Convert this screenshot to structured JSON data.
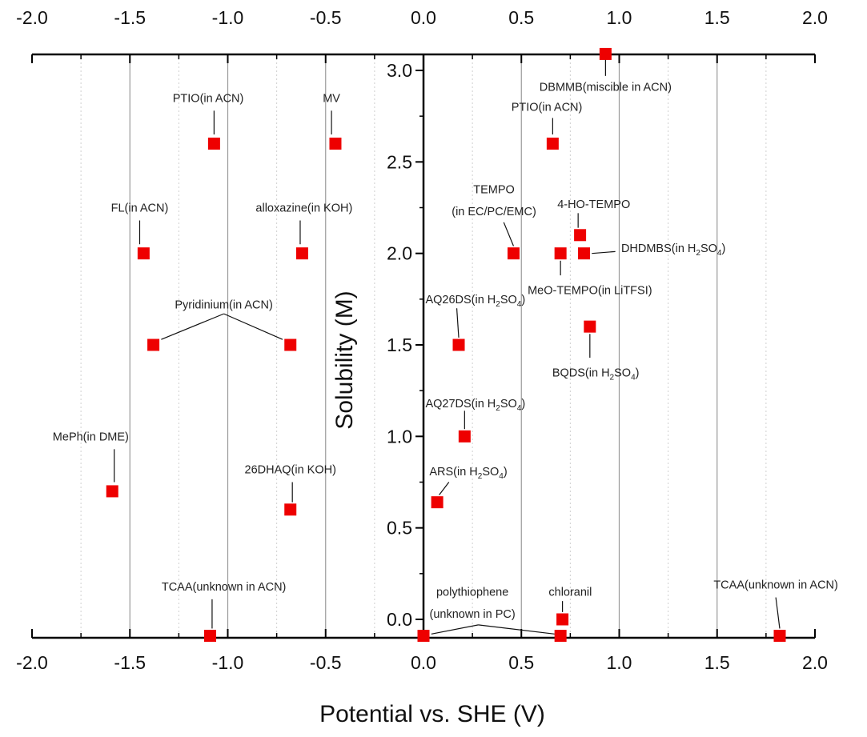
{
  "chart_data": {
    "type": "scatter",
    "xlabel": "Potential vs. SHE (V)",
    "ylabel": "Solubility (M)",
    "xlim": [
      -2.0,
      2.0
    ],
    "ylim": [
      -0.1,
      3.1
    ],
    "x_major_ticks": [
      -2.0,
      -1.5,
      -1.0,
      -0.5,
      0.0,
      0.5,
      1.0,
      1.5,
      2.0
    ],
    "x_tick_labels": [
      "-2.0",
      "-1.5",
      "-1.0",
      "-0.5",
      "0.0",
      "0.5",
      "1.0",
      "1.5",
      "2.0"
    ],
    "x_minor_gridlines": [
      -1.75,
      -1.25,
      -0.75,
      -0.25,
      0.25,
      0.75,
      1.25,
      1.75
    ],
    "y_ticks": [
      0.0,
      0.5,
      1.0,
      1.5,
      2.0,
      2.5,
      3.0
    ],
    "y_tick_labels": [
      "0.0",
      "0.5",
      "1.0",
      "1.5",
      "2.0",
      "2.5",
      "3.0"
    ],
    "y_axis_at_x": 0.0,
    "grid": "vertical only",
    "marker_color": "#ee0000",
    "points": [
      {
        "x": -1.07,
        "y": 2.6
      },
      {
        "x": -0.45,
        "y": 2.6
      },
      {
        "x": -1.43,
        "y": 2.0
      },
      {
        "x": -0.62,
        "y": 2.0
      },
      {
        "x": -1.38,
        "y": 1.5
      },
      {
        "x": -0.68,
        "y": 1.5
      },
      {
        "x": -1.59,
        "y": 0.7
      },
      {
        "x": -0.68,
        "y": 0.6
      },
      {
        "x": -1.09,
        "y": -0.09
      },
      {
        "x": 0.0,
        "y": -0.09
      },
      {
        "x": 0.7,
        "y": -0.09
      },
      {
        "x": 0.71,
        "y": 0.0
      },
      {
        "x": 1.82,
        "y": -0.09
      },
      {
        "x": 0.93,
        "y": 3.09
      },
      {
        "x": 0.66,
        "y": 2.6
      },
      {
        "x": 0.46,
        "y": 2.0
      },
      {
        "x": 0.7,
        "y": 2.0
      },
      {
        "x": 0.82,
        "y": 2.0
      },
      {
        "x": 0.8,
        "y": 2.1
      },
      {
        "x": 0.18,
        "y": 1.5
      },
      {
        "x": 0.85,
        "y": 1.6
      },
      {
        "x": 0.21,
        "y": 1.0
      },
      {
        "x": 0.07,
        "y": 0.64
      }
    ],
    "annotations": [
      {
        "parts": [
          {
            "t": "PTIO(in ACN)"
          }
        ],
        "x": -1.1,
        "y": 2.85,
        "anchor": "middle"
      },
      {
        "parts": [
          {
            "t": "MV"
          }
        ],
        "x": -0.47,
        "y": 2.85,
        "anchor": "middle"
      },
      {
        "parts": [
          {
            "t": "FL(in ACN)"
          }
        ],
        "x": -1.45,
        "y": 2.25,
        "anchor": "middle"
      },
      {
        "parts": [
          {
            "t": "alloxazine(in KOH)"
          }
        ],
        "x": -0.61,
        "y": 2.25,
        "anchor": "middle"
      },
      {
        "parts": [
          {
            "t": "Pyridinium(in ACN)"
          }
        ],
        "x": -1.02,
        "y": 1.72,
        "anchor": "middle"
      },
      {
        "parts": [
          {
            "t": "MePh(in DME)"
          }
        ],
        "x": -1.7,
        "y": 1.0,
        "anchor": "middle"
      },
      {
        "parts": [
          {
            "t": "26DHAQ(in KOH)"
          }
        ],
        "x": -0.68,
        "y": 0.82,
        "anchor": "middle"
      },
      {
        "parts": [
          {
            "t": "TCAA(unknown in ACN)"
          }
        ],
        "x": -1.02,
        "y": 0.18,
        "anchor": "middle"
      },
      {
        "parts": [
          {
            "t": "DBMMB(miscible in ACN)"
          }
        ],
        "x": 0.93,
        "y": 2.91,
        "anchor": "middle"
      },
      {
        "parts": [
          {
            "t": "PTIO(in ACN)"
          }
        ],
        "x": 0.63,
        "y": 2.8,
        "anchor": "middle"
      },
      {
        "parts": [
          {
            "t": "TEMPO"
          }
        ],
        "x": 0.36,
        "y": 2.35,
        "anchor": "middle"
      },
      {
        "parts": [
          {
            "t": "(in EC/PC/EMC)"
          }
        ],
        "x": 0.36,
        "y": 2.23,
        "anchor": "middle"
      },
      {
        "parts": [
          {
            "t": "4-HO-TEMPO"
          }
        ],
        "x": 0.87,
        "y": 2.27,
        "anchor": "middle"
      },
      {
        "parts": [
          {
            "t": "DHDMBS(in H"
          },
          {
            "t": "2",
            "sub": true
          },
          {
            "t": "SO"
          },
          {
            "t": "4",
            "sub": true
          },
          {
            "t": ")"
          }
        ],
        "x": 1.01,
        "y": 2.03,
        "anchor": "start"
      },
      {
        "parts": [
          {
            "t": "MeO-TEMPO(in LiTFSI)"
          }
        ],
        "x": 0.85,
        "y": 1.8,
        "anchor": "middle"
      },
      {
        "parts": [
          {
            "t": "AQ26DS(in H"
          },
          {
            "t": "2",
            "sub": true
          },
          {
            "t": "SO"
          },
          {
            "t": "4",
            "sub": true
          },
          {
            "t": ")"
          }
        ],
        "x": 0.01,
        "y": 1.75,
        "anchor": "start"
      },
      {
        "parts": [
          {
            "t": "BQDS(in H"
          },
          {
            "t": "2",
            "sub": true
          },
          {
            "t": "SO"
          },
          {
            "t": "4",
            "sub": true
          },
          {
            "t": ")"
          }
        ],
        "x": 0.88,
        "y": 1.35,
        "anchor": "middle"
      },
      {
        "parts": [
          {
            "t": "AQ27DS(in H"
          },
          {
            "t": "2",
            "sub": true
          },
          {
            "t": "SO"
          },
          {
            "t": "4",
            "sub": true
          },
          {
            "t": ")"
          }
        ],
        "x": 0.01,
        "y": 1.18,
        "anchor": "start"
      },
      {
        "parts": [
          {
            "t": "ARS(in H"
          },
          {
            "t": "2",
            "sub": true
          },
          {
            "t": "SO"
          },
          {
            "t": "4",
            "sub": true
          },
          {
            "t": ")"
          }
        ],
        "x": 0.03,
        "y": 0.81,
        "anchor": "start"
      },
      {
        "parts": [
          {
            "t": "polythiophene"
          }
        ],
        "x": 0.25,
        "y": 0.15,
        "anchor": "middle"
      },
      {
        "parts": [
          {
            "t": "(unknown in PC)"
          }
        ],
        "x": 0.25,
        "y": 0.03,
        "anchor": "middle"
      },
      {
        "parts": [
          {
            "t": "chloranil"
          }
        ],
        "x": 0.75,
        "y": 0.15,
        "anchor": "middle"
      },
      {
        "parts": [
          {
            "t": "TCAA(unknown in ACN)"
          }
        ],
        "x": 1.8,
        "y": 0.19,
        "anchor": "middle"
      }
    ],
    "leaders": [
      [
        [
          -1.07,
          2.78
        ],
        [
          -1.07,
          2.65
        ]
      ],
      [
        [
          -0.47,
          2.78
        ],
        [
          -0.47,
          2.65
        ]
      ],
      [
        [
          -1.45,
          2.18
        ],
        [
          -1.45,
          2.05
        ]
      ],
      [
        [
          -0.63,
          2.18
        ],
        [
          -0.63,
          2.05
        ]
      ],
      [
        [
          -1.02,
          1.67
        ],
        [
          -1.34,
          1.53
        ]
      ],
      [
        [
          -1.02,
          1.67
        ],
        [
          -0.72,
          1.53
        ]
      ],
      [
        [
          -1.58,
          0.93
        ],
        [
          -1.58,
          0.75
        ]
      ],
      [
        [
          -0.67,
          0.75
        ],
        [
          -0.67,
          0.64
        ]
      ],
      [
        [
          -1.08,
          0.11
        ],
        [
          -1.08,
          -0.05
        ]
      ],
      [
        [
          0.93,
          2.97
        ],
        [
          0.93,
          3.07
        ]
      ],
      [
        [
          0.66,
          2.74
        ],
        [
          0.66,
          2.65
        ]
      ],
      [
        [
          0.41,
          2.17
        ],
        [
          0.46,
          2.04
        ]
      ],
      [
        [
          0.79,
          2.22
        ],
        [
          0.79,
          2.14
        ]
      ],
      [
        [
          0.98,
          2.01
        ],
        [
          0.86,
          2.0
        ]
      ],
      [
        [
          0.7,
          1.88
        ],
        [
          0.7,
          1.96
        ]
      ],
      [
        [
          0.17,
          1.7
        ],
        [
          0.18,
          1.54
        ]
      ],
      [
        [
          0.85,
          1.43
        ],
        [
          0.85,
          1.56
        ]
      ],
      [
        [
          0.21,
          1.14
        ],
        [
          0.21,
          1.04
        ]
      ],
      [
        [
          0.13,
          0.75
        ],
        [
          0.08,
          0.68
        ]
      ],
      [
        [
          0.28,
          -0.03
        ],
        [
          0.04,
          -0.08
        ]
      ],
      [
        [
          0.28,
          -0.03
        ],
        [
          0.67,
          -0.08
        ]
      ],
      [
        [
          0.71,
          0.1
        ],
        [
          0.71,
          0.04
        ]
      ],
      [
        [
          1.8,
          0.12
        ],
        [
          1.82,
          -0.05
        ]
      ]
    ]
  }
}
